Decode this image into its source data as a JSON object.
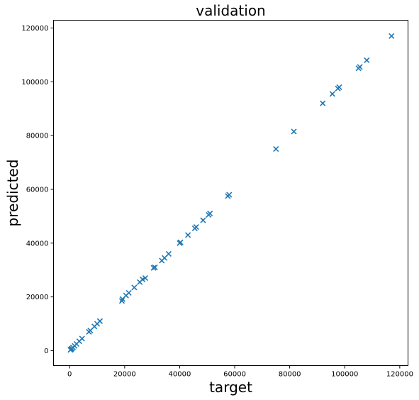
{
  "chart_data": {
    "type": "scatter",
    "title": "validation",
    "xlabel": "target",
    "ylabel": "predicted",
    "xlim": [
      -5860,
      123000
    ],
    "ylim": [
      -5550,
      122900
    ],
    "xticks": [
      0,
      20000,
      40000,
      60000,
      80000,
      100000,
      120000
    ],
    "yticks": [
      0,
      20000,
      40000,
      60000,
      80000,
      100000,
      120000
    ],
    "xtick_labels": [
      "0",
      "20000",
      "40000",
      "60000",
      "80000",
      "100000",
      "120000"
    ],
    "ytick_labels": [
      "0",
      "20000",
      "40000",
      "60000",
      "80000",
      "100000",
      "120000"
    ],
    "grid": false,
    "marker": "x",
    "color": "#1f77b4",
    "series": [
      {
        "x": [
          300,
          500,
          800,
          1200,
          1800,
          2500,
          3500,
          4500,
          7000,
          7500,
          9000,
          10000,
          11000,
          19000,
          19200,
          20500,
          21500,
          23500,
          25500,
          26500,
          27500,
          30500,
          31000,
          33500,
          34500,
          36000,
          40000,
          40300,
          43000,
          45500,
          46000,
          48500,
          50500,
          51000,
          57500,
          58000,
          75000,
          81500,
          92000,
          95500,
          97500,
          98000,
          105000,
          105500,
          108000,
          117000
        ],
        "y": [
          300,
          500,
          800,
          1200,
          1800,
          2500,
          3500,
          4500,
          7000,
          7500,
          9000,
          10000,
          11000,
          18500,
          19200,
          20500,
          21500,
          23500,
          25500,
          26500,
          27000,
          30800,
          31000,
          33500,
          34500,
          36000,
          40000,
          40300,
          43000,
          45500,
          46000,
          48500,
          50500,
          51000,
          57500,
          58000,
          75000,
          81500,
          92000,
          95500,
          97500,
          98000,
          105000,
          105500,
          108000,
          117000
        ]
      }
    ]
  }
}
